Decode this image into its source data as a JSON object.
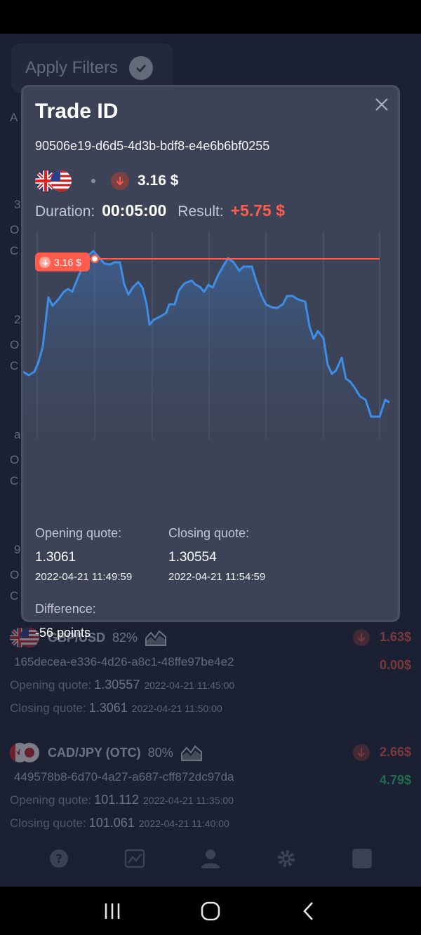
{
  "filters": {
    "apply_label": "Apply Filters"
  },
  "background_list": {
    "edge_letters": [
      "A",
      "3",
      "O",
      "C",
      "2",
      "O",
      "C",
      "a",
      "O",
      "C",
      "9",
      "O",
      "C"
    ],
    "trades": [
      {
        "pair": "GBP/USD",
        "payout": "82%",
        "amount": "1.63$",
        "id": "165decea-e336-4d26-a8c1-48ffe97be4e2",
        "result": "0.00$",
        "opening_label": "Opening quote:",
        "opening_value": "1.30557",
        "opening_time": "2022-04-21 11:45:00",
        "closing_label": "Closing quote:",
        "closing_value": "1.3061",
        "closing_time": "2022-04-21 11:50:00"
      },
      {
        "pair": "CAD/JPY (OTC)",
        "payout": "80%",
        "amount": "2.66$",
        "id": "449578b8-6d70-4a27-a687-cff872dc97da",
        "result": "4.79$",
        "opening_label": "Opening quote:",
        "opening_value": "101.112",
        "opening_time": "2022-04-21 11:35:00",
        "closing_label": "Closing quote:",
        "closing_value": "101.061",
        "closing_time": "2022-04-21 11:40:00"
      }
    ]
  },
  "modal": {
    "title": "Trade ID",
    "trade_id": "90506e19-d6d5-4d3b-bdf8-e4e6b6bf0255",
    "amount": "3.16 $",
    "duration_label": "Duration:",
    "duration_value": "00:05:00",
    "result_label": "Result:",
    "result_value": "+5.75 $",
    "price_tag": "3.16 $",
    "opening_label": "Opening quote:",
    "opening_value": "1.3061",
    "opening_time": "2022-04-21 11:49:59",
    "closing_label": "Closing quote:",
    "closing_value": "1.30554",
    "closing_time": "2022-04-21 11:54:59",
    "difference_label": "Difference:",
    "difference_value": "-56 points"
  },
  "colors": {
    "accent_red": "#ff5c4d",
    "accent_green": "#2fd06f",
    "line_blue": "#3d8ee8"
  },
  "icons": [
    "close-icon",
    "arrow-down-icon",
    "check-icon",
    "area-chart-icon",
    "help-icon",
    "user-icon",
    "gear-icon"
  ]
}
